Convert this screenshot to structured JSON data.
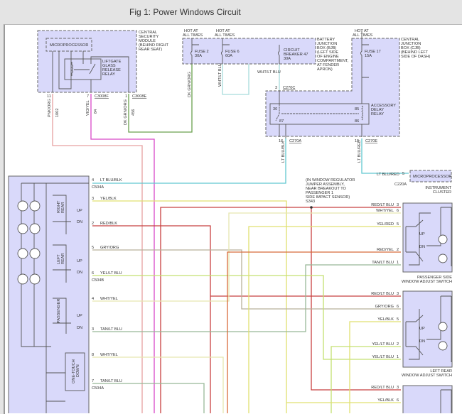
{
  "title": "Fig 1: Power Windows Circuit",
  "central_security_module": {
    "label": [
      "CENTRAL",
      "SECURITY",
      "MODULE",
      "(BEHIND RIGHT",
      "REAR SEAT)"
    ],
    "microprocessor": "MICROPROCESSOR",
    "relay": [
      "LIFTGATE",
      "GLASS",
      "RELEASE",
      "RELAY"
    ],
    "pins": [
      {
        "num": "11",
        "wire": "PNK/ORG",
        "circuit": "1002",
        "connector": ""
      },
      {
        "num": "7",
        "wire": "VIO/YEL",
        "circuit": "84",
        "connector": "C3008F"
      },
      {
        "num": "1",
        "wire": "DK GRN/ORG",
        "circuit": "456",
        "connector": "C3008E"
      }
    ]
  },
  "battery_junction_box": {
    "label": [
      "BATTERY",
      "JUNCTION",
      "BOX (BJB)",
      "(LEFT SIDE",
      "OF ENGINE",
      "COMPARTMENT,",
      "AT FENDER",
      "APRON)"
    ],
    "hot": [
      "HOT AT",
      "ALL TIMES"
    ],
    "fuse2": [
      "FUSE 2",
      "30A"
    ],
    "fuse6": [
      "FUSE 6",
      "60A"
    ],
    "breaker": [
      "CIRCUIT",
      "BREAKER 47",
      "30A"
    ],
    "wire_fuse2": "DK GRN/ORG",
    "wire_fuse6": "WHT/LT BLU",
    "wire_breaker": "WHT/LT BLU"
  },
  "central_junction_box": {
    "label": [
      "CENTRAL",
      "JUNCTION",
      "BOX (CJB)",
      "(BEHIND LEFT",
      "SIDE OF DASH)"
    ],
    "hot": [
      "HOT AT",
      "ALL TIMES"
    ],
    "fuse17": [
      "FUSE 17",
      "15A"
    ],
    "c270c": {
      "num": "3",
      "connector": "C270C"
    },
    "relay": {
      "label": [
        "ACCESSORY",
        "DELAY",
        "RELAY"
      ],
      "t30": "30",
      "t87": "87",
      "t85": "85",
      "t86": "86"
    },
    "c270a": {
      "num": "16",
      "connector": "C270A",
      "wire": "LT BLU/BLK"
    },
    "c270e": {
      "num": "15",
      "connector": "C270E",
      "wire": "LT BLU/RED"
    }
  },
  "instrument_cluster": {
    "microprocessor": "MICROPROCESSOR",
    "label": [
      "INSTRUMENT",
      "CLUSTER"
    ],
    "pin": "5",
    "wire": "LT BLU/RED",
    "connector": "C220A"
  },
  "splice": {
    "label": [
      "(IN WINDOW REGULATOR",
      "JUMPER ASSEMBLY,",
      "NEAR BREAKOUT TO",
      "PASSENGER 1",
      "SIDE IMPACT SENSOR)",
      "S343"
    ]
  },
  "master_switch": {
    "sections": {
      "right_rear": [
        "RIGHT",
        "REAR"
      ],
      "left_rear": [
        "LEFT",
        "REAR"
      ],
      "passenger": "PASSENGER",
      "one_touch": [
        "ONE-TOUCH",
        "DOWN"
      ],
      "up": "UP",
      "dn": "DN"
    },
    "pins": [
      {
        "num": "4",
        "wire": "LT BLU/BLK",
        "connector": "C504A"
      },
      {
        "num": "3",
        "wire": "YEL/BLK"
      },
      {
        "num": "2",
        "wire": "RED/BLK"
      },
      {
        "num": "5",
        "wire": "GRY/ORG"
      },
      {
        "num": "6",
        "wire": "YEL/LT BLU",
        "connector": "C504B"
      },
      {
        "num": "4",
        "wire": "WHT/YEL"
      },
      {
        "num": "3",
        "wire": "TAN/LT BLU"
      },
      {
        "num": "8",
        "wire": "WHT/YEL"
      },
      {
        "num": "7",
        "wire": "TAN/LT BLU",
        "connector": "C504A"
      }
    ]
  },
  "passenger_switch": {
    "label": [
      "PASSENGER SIDE",
      "WINDOW ADJUST SWITCH"
    ],
    "pins": [
      {
        "num": "3",
        "wire": "RED/LT BLU"
      },
      {
        "num": "6",
        "wire": "WHT/YEL"
      },
      {
        "num": "5",
        "wire": "YEL/RED"
      },
      {
        "num": "2",
        "wire": "RED/YEL"
      },
      {
        "num": "1",
        "wire": "TAN/LT BLU"
      }
    ]
  },
  "left_rear_switch": {
    "label": [
      "LEFT REAR",
      "WINDOW ADJUST SWITCH"
    ],
    "pins": [
      {
        "num": "3",
        "wire": "RED/LT BLU"
      },
      {
        "num": "6",
        "wire": "GRY/ORG"
      },
      {
        "num": "5",
        "wire": "YEL/BLK"
      },
      {
        "num": "2",
        "wire": "YEL/LT BLU"
      },
      {
        "num": "1",
        "wire": "YEL/LT BLU"
      }
    ]
  },
  "third_switch": {
    "pins": [
      {
        "num": "3",
        "wire": "RED/LT BLU"
      },
      {
        "num": "6",
        "wire": "YEL/BLK"
      }
    ]
  }
}
